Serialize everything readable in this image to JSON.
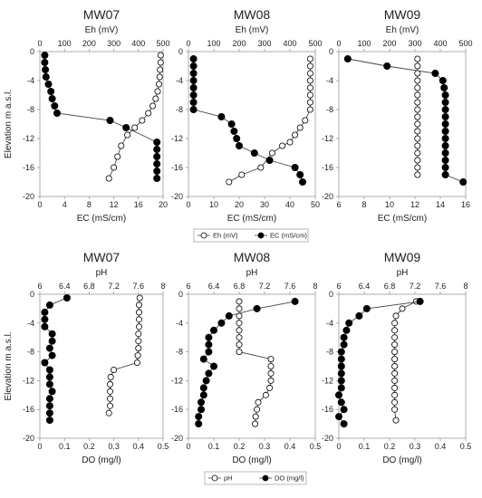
{
  "chart_data": [
    {
      "type": "scatter",
      "title": "MW07",
      "top_axis": {
        "label": "Eh (mV)",
        "range": [
          0,
          500
        ],
        "ticks": [
          "0",
          "100",
          "200",
          "300",
          "400",
          "500"
        ]
      },
      "bottom_axis": {
        "label": "EC (mS/cm)",
        "range": [
          0,
          20
        ],
        "ticks": [
          "0",
          "4",
          "8",
          "12",
          "16",
          "20"
        ]
      },
      "y_axis": {
        "label": "Elevation m a.s.l.",
        "range": [
          -20,
          0
        ],
        "ticks": [
          "0",
          "-4",
          "-8",
          "-12",
          "-16",
          "-20"
        ]
      },
      "series": [
        {
          "name": "Eh (mV)",
          "marker": "open-circle",
          "axis": "top",
          "x": [
            490,
            490,
            488,
            486,
            483,
            478,
            470,
            458,
            440,
            415,
            385,
            355,
            330,
            315,
            300,
            280
          ],
          "y": [
            -0.5,
            -1.5,
            -2.5,
            -3.5,
            -4.5,
            -5.5,
            -6.5,
            -7.5,
            -8.5,
            -9.5,
            -10.5,
            -11.5,
            -13,
            -14.5,
            -16,
            -17.5
          ]
        },
        {
          "name": "EC (mS/cm)",
          "marker": "filled-circle",
          "axis": "bottom",
          "x": [
            0.8,
            0.8,
            0.9,
            1.0,
            1.4,
            1.8,
            2.0,
            2.4,
            2.8,
            11.4,
            14.0,
            19.0,
            19.0,
            19.0,
            19.0,
            19.0,
            19.0
          ],
          "y": [
            -0.5,
            -1.5,
            -2.5,
            -3.5,
            -4.5,
            -5.5,
            -6.5,
            -7.5,
            -8.5,
            -9.5,
            -10.5,
            -12.5,
            -13.5,
            -14.5,
            -15.5,
            -16.5,
            -17.5
          ]
        }
      ]
    },
    {
      "type": "scatter",
      "title": "MW08",
      "top_axis": {
        "label": "Eh (mV)",
        "range": [
          0,
          500
        ],
        "ticks": [
          "0",
          "100",
          "200",
          "300",
          "400",
          "500"
        ]
      },
      "bottom_axis": {
        "label": "EC (mS/cm)",
        "range": [
          0,
          50
        ],
        "ticks": [
          "0",
          "10",
          "20",
          "30",
          "40",
          "50"
        ]
      },
      "y_axis": {
        "label": "Elevation m a.s.l.",
        "range": [
          -20,
          0
        ],
        "ticks": [
          "0",
          "-4",
          "-8",
          "-12",
          "-16",
          "-20"
        ]
      },
      "series": [
        {
          "name": "Eh (mV)",
          "marker": "open-circle",
          "axis": "top",
          "x": [
            480,
            480,
            480,
            480,
            480,
            480,
            480,
            480,
            460,
            440,
            420,
            400,
            370,
            330,
            285,
            210,
            160
          ],
          "y": [
            -1,
            -2,
            -3,
            -4,
            -5,
            -6,
            -7,
            -8,
            -9.5,
            -10.5,
            -11.5,
            -12.5,
            -13,
            -14,
            -16,
            -17,
            -18
          ]
        },
        {
          "name": "EC (mS/cm)",
          "marker": "filled-circle",
          "axis": "bottom",
          "x": [
            2,
            2,
            2,
            2,
            2,
            2,
            2,
            2,
            13,
            17,
            18,
            19,
            20,
            26,
            32,
            42,
            44,
            45
          ],
          "y": [
            -1,
            -2,
            -3,
            -4,
            -5,
            -6,
            -7,
            -8,
            -9,
            -10,
            -11,
            -12,
            -13,
            -14,
            -15,
            -16,
            -17,
            -18
          ]
        }
      ]
    },
    {
      "type": "scatter",
      "title": "MW09",
      "top_axis": {
        "label": "Eh (mV)",
        "range": [
          0,
          500
        ],
        "ticks": [
          "0",
          "100",
          "200",
          "300",
          "400",
          "500"
        ]
      },
      "bottom_axis": {
        "label": "EC (mS/cm)",
        "range": [
          6,
          16
        ],
        "ticks": [
          "6",
          "8",
          "10",
          "12",
          "14",
          "16"
        ]
      },
      "y_axis": {
        "label": "Elevation m a.s.l.",
        "range": [
          -20,
          0
        ],
        "ticks": [
          "0",
          "-4",
          "-8",
          "-12",
          "-16",
          "-20"
        ]
      },
      "series": [
        {
          "name": "Eh (mV)",
          "marker": "open-circle",
          "axis": "top",
          "x": [
            310,
            310,
            310,
            310,
            310,
            310,
            310,
            310,
            310,
            310,
            310,
            310,
            310,
            310,
            310,
            310,
            310
          ],
          "y": [
            -1,
            -2,
            -3,
            -4,
            -5,
            -6,
            -7,
            -8,
            -9,
            -10,
            -11,
            -12,
            -13,
            -14,
            -15,
            -16,
            -17
          ]
        },
        {
          "name": "EC (mS/cm)",
          "marker": "filled-circle",
          "axis": "bottom",
          "x": [
            6.7,
            9.8,
            13.6,
            14.2,
            14.3,
            14.4,
            14.4,
            14.4,
            14.4,
            14.4,
            14.4,
            14.4,
            14.4,
            14.4,
            14.4,
            14.4,
            14.4,
            15.8
          ],
          "y": [
            -1,
            -2,
            -3,
            -4,
            -5,
            -6,
            -7,
            -8,
            -9,
            -10,
            -11,
            -12,
            -13,
            -14,
            -15,
            -16,
            -17,
            -18
          ]
        }
      ]
    },
    {
      "type": "scatter",
      "title": "MW07",
      "top_axis": {
        "label": "pH",
        "range": [
          6,
          8
        ],
        "ticks": [
          "6",
          "6.4",
          "6.8",
          "7.2",
          "7.6",
          "8"
        ]
      },
      "bottom_axis": {
        "label": "DO (mg/l)",
        "range": [
          0,
          0.5
        ],
        "ticks": [
          "0",
          "0.1",
          "0.2",
          "0.3",
          "0.4",
          "0.5"
        ]
      },
      "y_axis": {
        "label": "Elevation m a.s.l.",
        "range": [
          -20,
          0
        ],
        "ticks": [
          "0",
          "-4",
          "-8",
          "-12",
          "-16",
          "-20"
        ]
      },
      "series": [
        {
          "name": "pH",
          "marker": "open-circle",
          "axis": "top",
          "x": [
            7.62,
            7.61,
            7.61,
            7.61,
            7.61,
            7.6,
            7.6,
            7.6,
            7.59,
            7.58,
            7.2,
            7.15,
            7.14,
            7.14,
            7.14,
            7.14,
            7.12
          ],
          "y": [
            -0.5,
            -1.5,
            -2.5,
            -3.5,
            -4.5,
            -5.5,
            -6.5,
            -7.5,
            -8.5,
            -9.5,
            -10.5,
            -11.5,
            -12.5,
            -13.5,
            -14.5,
            -15.5,
            -16.5
          ]
        },
        {
          "name": "DO (mg/l)",
          "marker": "filled-circle",
          "axis": "bottom",
          "x": [
            0.11,
            0.04,
            0.02,
            0.02,
            0.02,
            0.05,
            0.05,
            0.04,
            0.05,
            0.02,
            0.04,
            0.04,
            0.04,
            0.05,
            0.04,
            0.04,
            0.04,
            0.04
          ],
          "y": [
            -0.5,
            -1.5,
            -2.5,
            -3.5,
            -4.5,
            -5.5,
            -6.5,
            -7.5,
            -8.5,
            -9.5,
            -10.5,
            -11.5,
            -12.5,
            -13.5,
            -14.5,
            -15.5,
            -16.5,
            -17.5
          ]
        }
      ]
    },
    {
      "type": "scatter",
      "title": "MW08",
      "top_axis": {
        "label": "pH",
        "range": [
          6,
          8
        ],
        "ticks": [
          "6",
          "6.4",
          "6.8",
          "7.2",
          "7.6",
          "8"
        ]
      },
      "bottom_axis": {
        "label": "DO (mg/l)",
        "range": [
          0,
          0.5
        ],
        "ticks": [
          "0",
          "0.1",
          "0.2",
          "0.3",
          "0.4",
          "0.5"
        ]
      },
      "y_axis": {
        "label": "Elevation m a.s.l.",
        "range": [
          -20,
          0
        ],
        "ticks": [
          "0",
          "-4",
          "-8",
          "-12",
          "-16",
          "-20"
        ]
      },
      "series": [
        {
          "name": "pH",
          "marker": "open-circle",
          "axis": "top",
          "x": [
            6.8,
            6.8,
            6.8,
            6.8,
            6.8,
            6.8,
            6.8,
            6.8,
            7.3,
            7.3,
            7.3,
            7.3,
            7.28,
            7.22,
            7.1,
            7.08,
            7.06,
            7.05
          ],
          "y": [
            -1,
            -2,
            -3,
            -4,
            -5,
            -6,
            -7,
            -8,
            -9,
            -10,
            -11,
            -12,
            -13,
            -14,
            -15,
            -16,
            -17,
            -18
          ]
        },
        {
          "name": "DO (mg/l)",
          "marker": "filled-circle",
          "axis": "bottom",
          "x": [
            0.42,
            0.27,
            0.16,
            0.13,
            0.1,
            0.08,
            0.08,
            0.08,
            0.06,
            0.1,
            0.08,
            0.07,
            0.06,
            0.06,
            0.05,
            0.05,
            0.04,
            0.04
          ],
          "y": [
            -1,
            -2,
            -3,
            -4,
            -5,
            -6,
            -7,
            -8,
            -9,
            -10,
            -11,
            -12,
            -13,
            -14,
            -15,
            -16,
            -17,
            -18
          ]
        }
      ]
    },
    {
      "type": "scatter",
      "title": "MW09",
      "top_axis": {
        "label": "pH",
        "range": [
          6,
          8
        ],
        "ticks": [
          "6",
          "6.4",
          "6.8",
          "7.2",
          "7.6",
          "8"
        ]
      },
      "bottom_axis": {
        "label": "DO (mg/l)",
        "range": [
          0,
          0.5
        ],
        "ticks": [
          "0",
          "0.1",
          "0.2",
          "0.3",
          "0.4",
          "0.5"
        ]
      },
      "y_axis": {
        "label": "Elevation m a.s.l.",
        "range": [
          -20,
          0
        ],
        "ticks": [
          "0",
          "-4",
          "-8",
          "-12",
          "-16",
          "-20"
        ]
      },
      "series": [
        {
          "name": "pH",
          "marker": "open-circle",
          "axis": "top",
          "x": [
            7.22,
            7.0,
            6.9,
            6.88,
            6.88,
            6.88,
            6.88,
            6.88,
            6.88,
            6.88,
            6.88,
            6.88,
            6.88,
            6.88,
            6.88,
            6.88,
            6.9
          ],
          "y": [
            -1,
            -2,
            -3,
            -4,
            -5,
            -6,
            -7,
            -8,
            -9,
            -10,
            -11,
            -12,
            -13,
            -14,
            -15,
            -16,
            -17.5
          ]
        },
        {
          "name": "DO (mg/l)",
          "marker": "filled-circle",
          "axis": "bottom",
          "x": [
            0.32,
            0.11,
            0.08,
            0.04,
            0.03,
            0.02,
            0.02,
            0.01,
            0.01,
            0.01,
            0.01,
            0.01,
            0.01,
            0.0,
            0.01,
            0.02,
            0.0,
            0.02
          ],
          "y": [
            -1,
            -2,
            -3,
            -4,
            -5,
            -6,
            -7,
            -8,
            -9,
            -10,
            -11,
            -12,
            -13,
            -14,
            -15,
            -16,
            -17,
            -18
          ]
        }
      ]
    }
  ],
  "legends": [
    {
      "items": [
        {
          "name": "Eh (mV)",
          "marker": "open-circle"
        },
        {
          "name": "EC (mS/cm)",
          "marker": "filled-circle"
        }
      ]
    },
    {
      "items": [
        {
          "name": "pH",
          "marker": "open-circle"
        },
        {
          "name": "DO (mg/l)",
          "marker": "filled-circle"
        }
      ]
    }
  ]
}
